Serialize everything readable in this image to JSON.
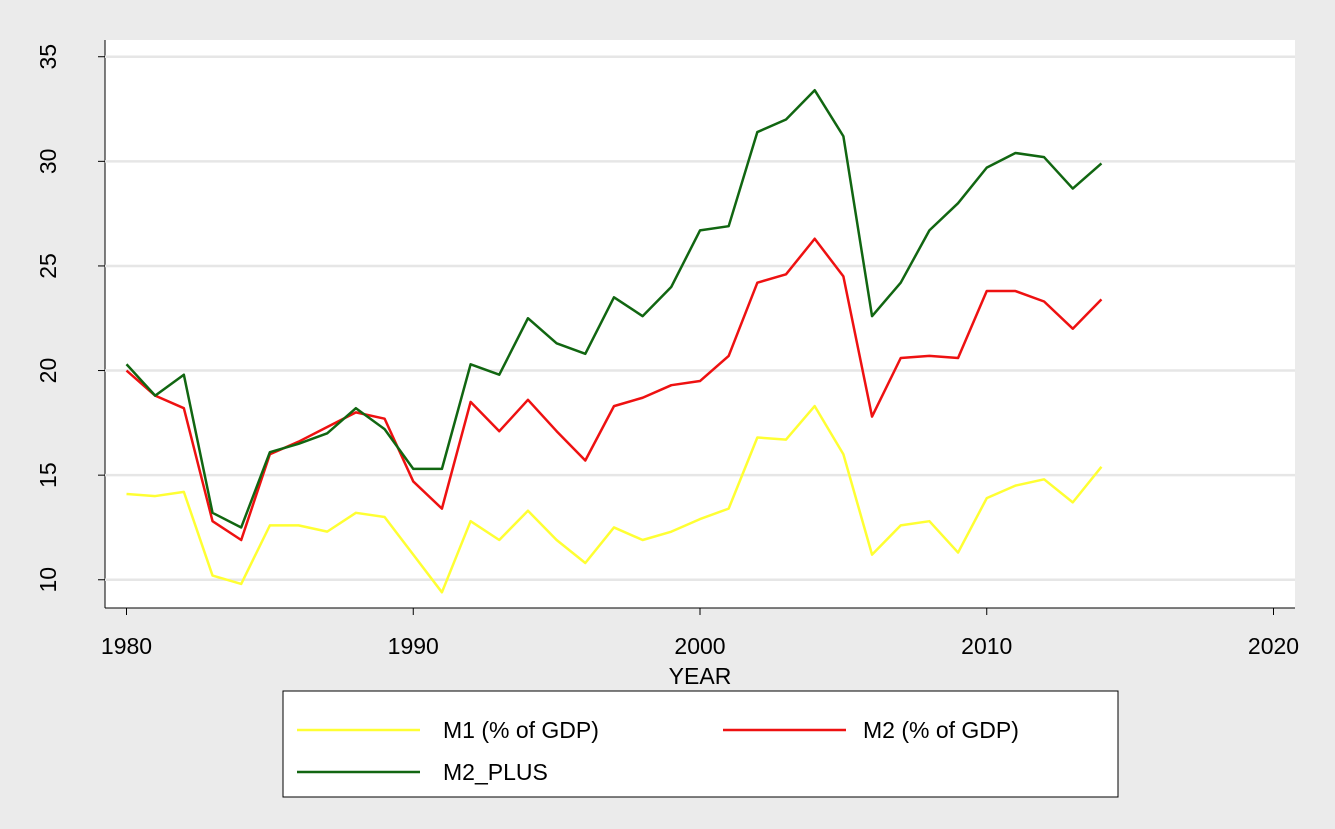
{
  "chart_data": {
    "type": "line",
    "x_label": "YEAR",
    "x": [
      1980,
      1981,
      1982,
      1983,
      1984,
      1985,
      1986,
      1987,
      1988,
      1989,
      1990,
      1991,
      1992,
      1993,
      1994,
      1995,
      1996,
      1997,
      1998,
      1999,
      2000,
      2001,
      2002,
      2003,
      2004,
      2005,
      2006,
      2007,
      2008,
      2009,
      2010,
      2011,
      2012,
      2013,
      2014
    ],
    "series": [
      {
        "name": "M1 (% of GDP)",
        "color": "#ffff33",
        "values": [
          14.1,
          14.0,
          14.2,
          10.2,
          9.8,
          12.6,
          12.6,
          12.3,
          13.2,
          13.0,
          11.2,
          9.4,
          12.8,
          11.9,
          13.3,
          11.9,
          10.8,
          12.5,
          11.9,
          12.3,
          12.9,
          13.4,
          16.8,
          16.7,
          18.3,
          16.0,
          11.2,
          12.6,
          12.8,
          11.3,
          13.9,
          14.5,
          14.8,
          13.7,
          15.4
        ]
      },
      {
        "name": "M2 (% of GDP)",
        "color": "#ee1111",
        "values": [
          20.0,
          18.8,
          18.2,
          12.8,
          11.9,
          16.0,
          16.6,
          17.3,
          18.0,
          17.7,
          14.7,
          13.4,
          18.5,
          17.1,
          18.6,
          17.1,
          15.7,
          18.3,
          18.7,
          19.3,
          19.5,
          20.7,
          24.2,
          24.6,
          26.3,
          24.5,
          17.8,
          20.6,
          20.7,
          20.6,
          23.8,
          23.8,
          23.3,
          22.0,
          23.4
        ]
      },
      {
        "name": "M2_PLUS",
        "color": "#116611",
        "values": [
          20.3,
          18.8,
          19.8,
          13.2,
          12.5,
          16.1,
          16.5,
          17.0,
          18.2,
          17.2,
          15.3,
          15.3,
          20.3,
          19.8,
          22.5,
          21.3,
          20.8,
          23.5,
          22.6,
          24.0,
          26.7,
          26.9,
          31.4,
          32.0,
          33.4,
          31.2,
          22.6,
          24.2,
          26.7,
          28.0,
          29.7,
          30.4,
          30.2,
          28.7,
          29.9
        ]
      }
    ],
    "xlim": [
      1979.25,
      2020.75
    ],
    "xticks": [
      1980,
      1990,
      2000,
      2010,
      2020
    ],
    "ylim": [
      8.65,
      35.8
    ],
    "yticks": [
      10,
      15,
      20,
      25,
      30,
      35
    ],
    "grid": true,
    "legend": "bottom"
  }
}
